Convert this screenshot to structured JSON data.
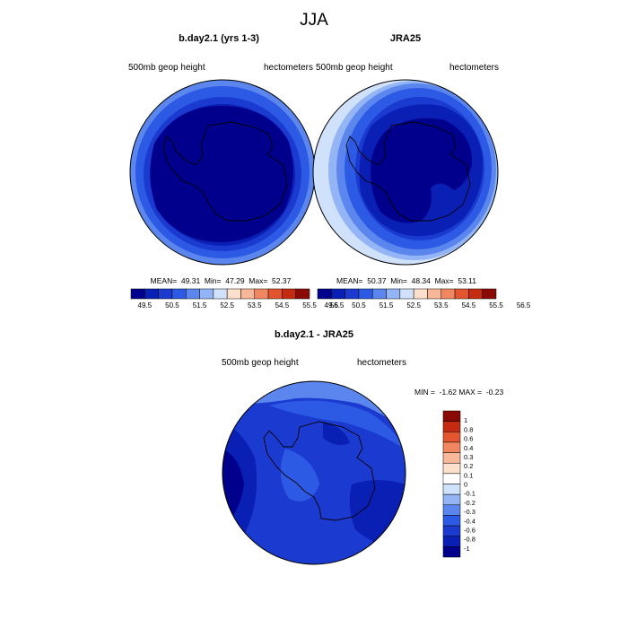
{
  "figure": {
    "title": "JJA"
  },
  "palette": {
    "height": [
      "#00008c",
      "#0a1fb4",
      "#1a3ad0",
      "#2d5ae4",
      "#5b86ee",
      "#93b4f5",
      "#cfe1fb",
      "#fde0cc",
      "#f9b79a",
      "#f18760",
      "#e2552e",
      "#c52b10",
      "#8a0a05"
    ],
    "diff": [
      "#00008c",
      "#0a1fb4",
      "#1a3ad0",
      "#2d5ae4",
      "#5b86ee",
      "#93b4f5",
      "#cfe1fb",
      "#ffffff",
      "#fde0cc",
      "#f9b79a",
      "#f18760",
      "#e2552e",
      "#c52b10",
      "#8a0a05"
    ]
  },
  "chart_data": [
    {
      "type": "heatmap",
      "projection": "south-polar-stereographic",
      "title": "b.day2.1 (yrs 1-3)",
      "left_label": "500mb geop height",
      "right_label": "hectometers",
      "stats": "MEAN=  49.31  Min=  47.29  Max=  52.37",
      "mean": 49.31,
      "min": 47.29,
      "max": 52.37,
      "levels": [
        "49.5",
        "50",
        "50.5",
        "51",
        "51.5",
        "52",
        "52.5",
        "53",
        "53.5",
        "54",
        "54.5",
        "55",
        "55.5",
        "56",
        "56.5"
      ],
      "tick_labels": [
        "49.5",
        "50.5",
        "51.5",
        "52.5",
        "53.5",
        "54.5",
        "55.5",
        "56.5"
      ]
    },
    {
      "type": "heatmap",
      "projection": "south-polar-stereographic",
      "title": "JRA25",
      "left_label": "500mb geop height",
      "right_label": "hectometers",
      "stats": "MEAN=  50.37  Min=  48.34  Max=  53.11",
      "mean": 50.37,
      "min": 48.34,
      "max": 53.11,
      "levels": [
        "49.5",
        "50",
        "50.5",
        "51",
        "51.5",
        "52",
        "52.5",
        "53",
        "53.5",
        "54",
        "54.5",
        "55",
        "55.5",
        "56",
        "56.5"
      ],
      "tick_labels": [
        "49.5",
        "50.5",
        "51.5",
        "52.5",
        "53.5",
        "54.5",
        "55.5",
        "56.5"
      ]
    },
    {
      "type": "heatmap",
      "projection": "south-polar-stereographic",
      "title": "b.day2.1 - JRA25",
      "left_label": "500mb geop height",
      "right_label": "hectometers",
      "stats": "MIN =  -1.62 MAX =  -0.23",
      "min": -1.62,
      "max": -0.23,
      "levels": [
        "1",
        "0.8",
        "0.6",
        "0.4",
        "0.3",
        "0.2",
        "0.1",
        "0",
        "-0.1",
        "-0.2",
        "-0.3",
        "-0.4",
        "-0.6",
        "-0.8",
        "-1"
      ]
    }
  ]
}
